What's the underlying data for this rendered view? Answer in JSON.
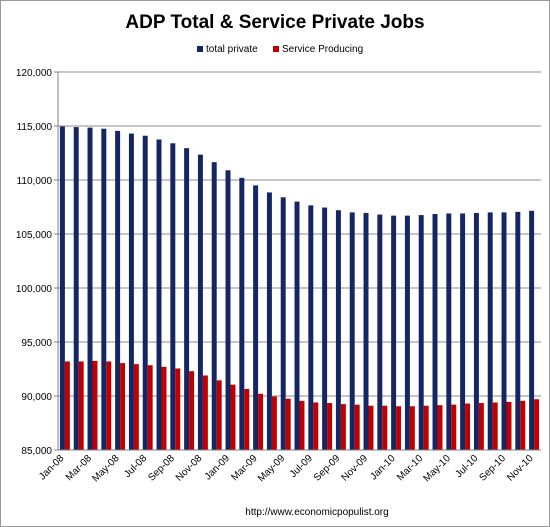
{
  "footer": "http://www.economicpopulist.org",
  "chart_data": {
    "type": "bar",
    "title": "ADP Total & Service Private Jobs",
    "xlabel": "",
    "ylabel": "",
    "ylim": [
      85000,
      120000
    ],
    "ytick_step": 5000,
    "grid": true,
    "legend_position": "top",
    "categories": [
      "Jan-08",
      "Feb-08",
      "Mar-08",
      "Apr-08",
      "May-08",
      "Jun-08",
      "Jul-08",
      "Aug-08",
      "Sep-08",
      "Oct-08",
      "Nov-08",
      "Dec-08",
      "Jan-09",
      "Feb-09",
      "Mar-09",
      "Apr-09",
      "May-09",
      "Jun-09",
      "Jul-09",
      "Aug-09",
      "Sep-09",
      "Oct-09",
      "Nov-09",
      "Dec-09",
      "Jan-10",
      "Feb-10",
      "Mar-10",
      "Apr-10",
      "May-10",
      "Jun-10",
      "Jul-10",
      "Aug-10",
      "Sep-10",
      "Oct-10",
      "Nov-10"
    ],
    "shown_tick_labels": [
      "Jan-08",
      "Mar-08",
      "May-08",
      "Jul-08",
      "Sep-08",
      "Nov-08",
      "Jan-09",
      "Mar-09",
      "May-09",
      "Jul-09",
      "Sep-09",
      "Nov-09",
      "Jan-10",
      "Mar-10",
      "May-10",
      "Jul-10",
      "Sep-10",
      "Nov-10"
    ],
    "series": [
      {
        "name": "total private",
        "color": "#142664",
        "values": [
          114950,
          114900,
          114850,
          114750,
          114550,
          114300,
          114100,
          113750,
          113400,
          112950,
          112350,
          111650,
          110900,
          110200,
          109500,
          108850,
          108400,
          108000,
          107650,
          107450,
          107200,
          107000,
          106950,
          106800,
          106700,
          106700,
          106750,
          106850,
          106900,
          106900,
          106950,
          107000,
          107000,
          107050,
          107150
        ]
      },
      {
        "name": "Service Producing",
        "color": "#c00000",
        "values": [
          93200,
          93200,
          93250,
          93200,
          93050,
          92950,
          92850,
          92700,
          92550,
          92300,
          91900,
          91450,
          91050,
          90650,
          90200,
          89950,
          89750,
          89550,
          89400,
          89350,
          89250,
          89200,
          89100,
          89100,
          89050,
          89050,
          89100,
          89150,
          89200,
          89300,
          89350,
          89400,
          89450,
          89550,
          89700
        ]
      }
    ]
  }
}
